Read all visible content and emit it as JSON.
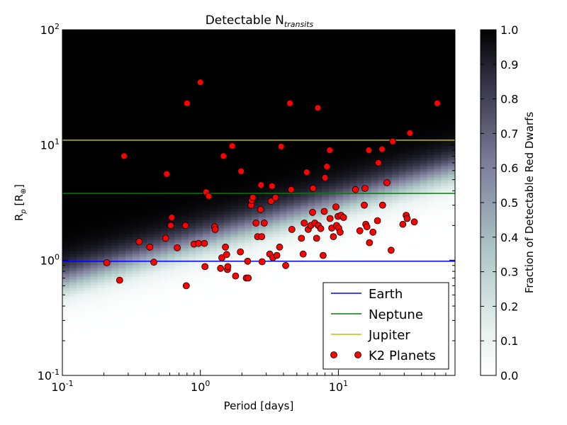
{
  "chart_data": {
    "type": "heatmap",
    "title": "Detectable N",
    "title_subscript": "transits",
    "xlabel": "Period [days]",
    "ylabel_main": "R",
    "ylabel_sub": "p",
    "ylabel_tail": " [R",
    "ylabel_sym": "⊕",
    "ylabel_end": "]",
    "xscale": "log",
    "yscale": "log",
    "xlim": [
      0.1,
      70
    ],
    "ylim": [
      0.1,
      100
    ],
    "x_ticks": [
      {
        "base": "10",
        "exp": "-1",
        "value": 0.1
      },
      {
        "base": "10",
        "exp": "0",
        "value": 1
      },
      {
        "base": "10",
        "exp": "1",
        "value": 10
      }
    ],
    "y_ticks": [
      {
        "base": "10",
        "exp": "-1",
        "value": 0.1
      },
      {
        "base": "10",
        "exp": "0",
        "value": 1
      },
      {
        "base": "10",
        "exp": "1",
        "value": 10
      },
      {
        "base": "10",
        "exp": "2",
        "value": 100
      }
    ],
    "colorbar": {
      "label": "Fraction of Detectable Red Dwarfs",
      "range": [
        0.0,
        1.0
      ],
      "ticks": [
        "0.0",
        "0.1",
        "0.2",
        "0.3",
        "0.4",
        "0.5",
        "0.6",
        "0.7",
        "0.8",
        "0.9",
        "1.0"
      ],
      "colormap": "bone_r"
    },
    "reference_lines": [
      {
        "name": "Earth",
        "y": 0.98,
        "color": "#0000ff"
      },
      {
        "name": "Neptune",
        "y": 3.8,
        "color": "#008000"
      },
      {
        "name": "Jupiter",
        "y": 11,
        "color": "#bfbf00"
      }
    ],
    "scatter_series": {
      "name": "K2 Planets",
      "color": "#ff0000",
      "points": [
        [
          0.21,
          0.95
        ],
        [
          0.26,
          0.67
        ],
        [
          0.28,
          8.0
        ],
        [
          0.36,
          1.45
        ],
        [
          0.43,
          1.3
        ],
        [
          0.46,
          0.96
        ],
        [
          0.56,
          1.55
        ],
        [
          0.57,
          5.6
        ],
        [
          0.61,
          2.0
        ],
        [
          0.62,
          2.35
        ],
        [
          0.68,
          1.28
        ],
        [
          0.78,
          2.0
        ],
        [
          0.79,
          0.6
        ],
        [
          0.8,
          23.0
        ],
        [
          0.9,
          1.38
        ],
        [
          0.97,
          1.4
        ],
        [
          1.0,
          35.0
        ],
        [
          1.07,
          1.4
        ],
        [
          1.08,
          0.88
        ],
        [
          1.1,
          3.9
        ],
        [
          1.15,
          3.6
        ],
        [
          1.27,
          1.95
        ],
        [
          1.28,
          1.85
        ],
        [
          1.4,
          0.85
        ],
        [
          1.43,
          1.05
        ],
        [
          1.47,
          8.0
        ],
        [
          1.52,
          1.3
        ],
        [
          1.55,
          1.12
        ],
        [
          1.57,
          0.83
        ],
        [
          1.58,
          0.88
        ],
        [
          1.7,
          9.8
        ],
        [
          1.8,
          0.73
        ],
        [
          1.95,
          1.18
        ],
        [
          1.97,
          5.9
        ],
        [
          2.15,
          0.7
        ],
        [
          2.2,
          0.98
        ],
        [
          2.22,
          0.7
        ],
        [
          2.33,
          3.0
        ],
        [
          2.35,
          3.3
        ],
        [
          2.4,
          3.5
        ],
        [
          2.53,
          2.1
        ],
        [
          2.6,
          1.6
        ],
        [
          2.73,
          2.75
        ],
        [
          2.75,
          4.5
        ],
        [
          2.78,
          1.6
        ],
        [
          2.8,
          0.97
        ],
        [
          2.9,
          2.1
        ],
        [
          3.18,
          1.13
        ],
        [
          3.25,
          3.25
        ],
        [
          3.3,
          4.4
        ],
        [
          3.35,
          1.05
        ],
        [
          3.5,
          3.5
        ],
        [
          3.58,
          1.1
        ],
        [
          3.75,
          1.3
        ],
        [
          3.85,
          9.7
        ],
        [
          4.15,
          0.9
        ],
        [
          4.45,
          23.0
        ],
        [
          4.55,
          4.1
        ],
        [
          4.6,
          1.85
        ],
        [
          5.4,
          1.55
        ],
        [
          5.55,
          1.13
        ],
        [
          5.65,
          2.1
        ],
        [
          5.9,
          5.8
        ],
        [
          6.05,
          1.85
        ],
        [
          6.3,
          2.0
        ],
        [
          6.5,
          2.6
        ],
        [
          6.55,
          4.2
        ],
        [
          6.75,
          2.1
        ],
        [
          6.95,
          1.55
        ],
        [
          7.1,
          21.0
        ],
        [
          7.15,
          2.0
        ],
        [
          7.45,
          1.88
        ],
        [
          7.75,
          1.1
        ],
        [
          7.9,
          2.65
        ],
        [
          8.0,
          5.2
        ],
        [
          8.25,
          6.5
        ],
        [
          8.65,
          9.0
        ],
        [
          8.7,
          2.3
        ],
        [
          8.95,
          1.9
        ],
        [
          9.2,
          1.6
        ],
        [
          9.6,
          2.9
        ],
        [
          9.7,
          2.0
        ],
        [
          9.95,
          2.4
        ],
        [
          10.05,
          1.9
        ],
        [
          10.3,
          1.75
        ],
        [
          10.45,
          2.45
        ],
        [
          10.9,
          2.35
        ],
        [
          13.3,
          4.1
        ],
        [
          14.3,
          1.8
        ],
        [
          15.4,
          3.0
        ],
        [
          15.6,
          4.2
        ],
        [
          15.8,
          2.05
        ],
        [
          16.1,
          1.95
        ],
        [
          16.6,
          9.0
        ],
        [
          16.8,
          1.42
        ],
        [
          17.8,
          1.75
        ],
        [
          19.2,
          2.2
        ],
        [
          19.5,
          7.0
        ],
        [
          20.7,
          9.2
        ],
        [
          20.9,
          3.0
        ],
        [
          22.5,
          4.7
        ],
        [
          24.1,
          1.22
        ],
        [
          24.8,
          10.7
        ],
        [
          29.3,
          2.05
        ],
        [
          31.0,
          2.45
        ],
        [
          31.5,
          2.3
        ],
        [
          33.0,
          12.7
        ],
        [
          35.5,
          2.15
        ],
        [
          52.0,
          23.0
        ]
      ]
    },
    "legend": {
      "placement": "lower-right",
      "entries": [
        "Earth",
        "Neptune",
        "Jupiter",
        "K2 Planets"
      ]
    }
  }
}
